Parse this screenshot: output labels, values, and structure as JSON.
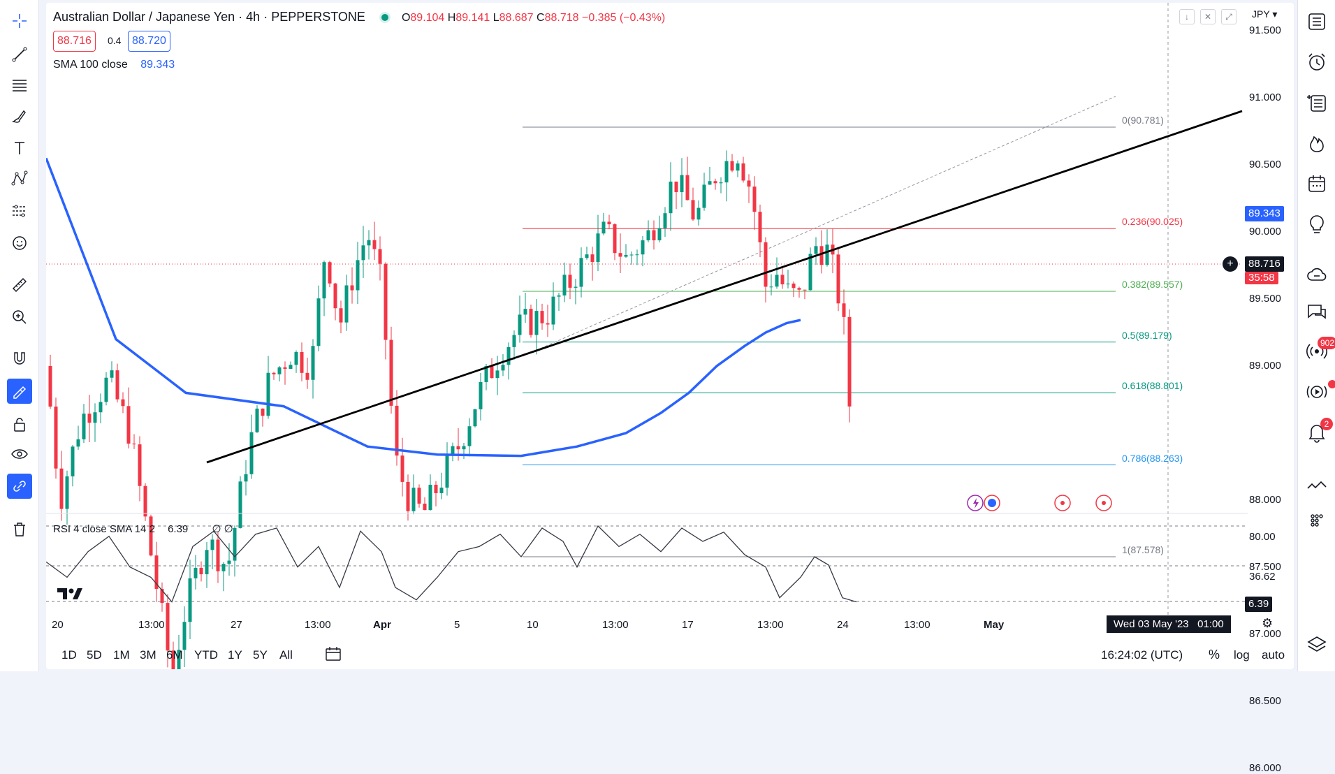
{
  "header": {
    "title": "Australian Dollar / Japanese Yen · 4h · PEPPERSTONE",
    "ohlc": {
      "o_label": "O",
      "o": "89.104",
      "h_label": "H",
      "h": "89.141",
      "l_label": "L",
      "l": "88.687",
      "c_label": "C",
      "c": "88.718",
      "change": "−0.385 (−0.43%)"
    },
    "sell_price": "88.716",
    "spread": "0.4",
    "buy_price": "88.720"
  },
  "indicators": {
    "sma_label": "SMA 100 close",
    "sma_value": "89.343",
    "rsi_label": "RSI 4 close SMA 14 2",
    "rsi_value": "6.39",
    "rsi_extra": "∅ ∅"
  },
  "currency": "JPY",
  "y_axis": [
    "91.500",
    "91.000",
    "90.500",
    "90.000",
    "89.500",
    "89.000",
    "88.000",
    "87.500",
    "87.000",
    "86.500",
    "86.000"
  ],
  "price_tags": {
    "sma": "89.343",
    "last": "88.716",
    "countdown": "35:58"
  },
  "rsi_axis": [
    "80.00",
    "36.62",
    "6.39"
  ],
  "fib_levels": [
    {
      "label": "0(90.781)",
      "color": "#787b86"
    },
    {
      "label": "0.236(90.025)",
      "color": "#f23645"
    },
    {
      "label": "0.382(89.557)",
      "color": "#4caf50"
    },
    {
      "label": "0.5(89.179)",
      "color": "#089981"
    },
    {
      "label": "0.618(88.801)",
      "color": "#089981"
    },
    {
      "label": "0.786(88.263)",
      "color": "#2196f3"
    },
    {
      "label": "1(87.578)",
      "color": "#787b86"
    }
  ],
  "x_axis": [
    "20",
    "13:00",
    "27",
    "13:00",
    "Apr",
    "5",
    "10",
    "13:00",
    "17",
    "13:00",
    "24",
    "13:00",
    "May"
  ],
  "crosshair_time": "Wed 03 May '23   01:00",
  "ranges": [
    "1D",
    "5D",
    "1M",
    "3M",
    "6M",
    "YTD",
    "1Y",
    "5Y",
    "All"
  ],
  "clock": "16:24:02 (UTC)",
  "scale_opts": {
    "percent": "%",
    "log": "log",
    "auto": "auto"
  },
  "badges": {
    "streams": "902",
    "alerts": "2"
  },
  "colors": {
    "up": "#089981",
    "down": "#f23645",
    "sma": "#2962ff",
    "accent": "#2962ff"
  },
  "chart_data": {
    "type": "candlestick",
    "symbol": "AUDJPY",
    "interval": "4h",
    "ylim": [
      85.6,
      91.7
    ],
    "sma100": [
      [
        0,
        90.55
      ],
      [
        100,
        89.2
      ],
      [
        200,
        88.8
      ],
      [
        340,
        88.7
      ],
      [
        460,
        88.4
      ],
      [
        560,
        88.34
      ],
      [
        680,
        88.33
      ],
      [
        760,
        88.4
      ],
      [
        830,
        88.5
      ],
      [
        880,
        88.65
      ],
      [
        920,
        88.8
      ],
      [
        960,
        89.0
      ],
      [
        1000,
        89.15
      ],
      [
        1030,
        89.25
      ],
      [
        1060,
        89.32
      ],
      [
        1080,
        89.343
      ]
    ],
    "close_path": [
      [
        0,
        89.0
      ],
      [
        20,
        88.0
      ],
      [
        50,
        88.6
      ],
      [
        90,
        88.9
      ],
      [
        120,
        88.5
      ],
      [
        150,
        87.6
      ],
      [
        180,
        86.7
      ],
      [
        200,
        87.2
      ],
      [
        230,
        87.7
      ],
      [
        260,
        87.5
      ],
      [
        290,
        88.4
      ],
      [
        320,
        88.9
      ],
      [
        350,
        89.1
      ],
      [
        380,
        89.0
      ],
      [
        400,
        89.9
      ],
      [
        420,
        89.3
      ],
      [
        440,
        89.7
      ],
      [
        460,
        90.0
      ],
      [
        480,
        89.6
      ],
      [
        500,
        88.3
      ],
      [
        520,
        88.0
      ],
      [
        540,
        87.9
      ],
      [
        560,
        88.1
      ],
      [
        590,
        88.4
      ],
      [
        620,
        88.8
      ],
      [
        650,
        89.1
      ],
      [
        680,
        89.3
      ],
      [
        720,
        89.4
      ],
      [
        760,
        89.7
      ],
      [
        800,
        90.0
      ],
      [
        830,
        89.8
      ],
      [
        860,
        89.95
      ],
      [
        900,
        90.4
      ],
      [
        930,
        90.1
      ],
      [
        960,
        90.45
      ],
      [
        990,
        90.6
      ],
      [
        1010,
        90.3
      ],
      [
        1030,
        89.6
      ],
      [
        1045,
        89.7
      ],
      [
        1060,
        89.55
      ],
      [
        1080,
        89.5
      ],
      [
        1100,
        89.9
      ],
      [
        1120,
        89.85
      ],
      [
        1140,
        89.4
      ],
      [
        1150,
        88.72
      ]
    ],
    "rsi_path": [
      [
        0,
        45
      ],
      [
        30,
        30
      ],
      [
        60,
        55
      ],
      [
        90,
        70
      ],
      [
        120,
        40
      ],
      [
        150,
        30
      ],
      [
        180,
        6
      ],
      [
        210,
        60
      ],
      [
        240,
        75
      ],
      [
        270,
        50
      ],
      [
        300,
        72
      ],
      [
        330,
        78
      ],
      [
        360,
        40
      ],
      [
        390,
        60
      ],
      [
        420,
        20
      ],
      [
        450,
        75
      ],
      [
        480,
        55
      ],
      [
        500,
        20
      ],
      [
        530,
        8
      ],
      [
        560,
        30
      ],
      [
        590,
        55
      ],
      [
        620,
        60
      ],
      [
        650,
        72
      ],
      [
        680,
        50
      ],
      [
        710,
        78
      ],
      [
        740,
        65
      ],
      [
        760,
        40
      ],
      [
        790,
        80
      ],
      [
        820,
        60
      ],
      [
        850,
        72
      ],
      [
        880,
        55
      ],
      [
        910,
        78
      ],
      [
        940,
        65
      ],
      [
        970,
        74
      ],
      [
        1000,
        52
      ],
      [
        1030,
        40
      ],
      [
        1050,
        10
      ],
      [
        1080,
        30
      ],
      [
        1100,
        50
      ],
      [
        1120,
        42
      ],
      [
        1140,
        10
      ],
      [
        1160,
        6
      ]
    ]
  }
}
